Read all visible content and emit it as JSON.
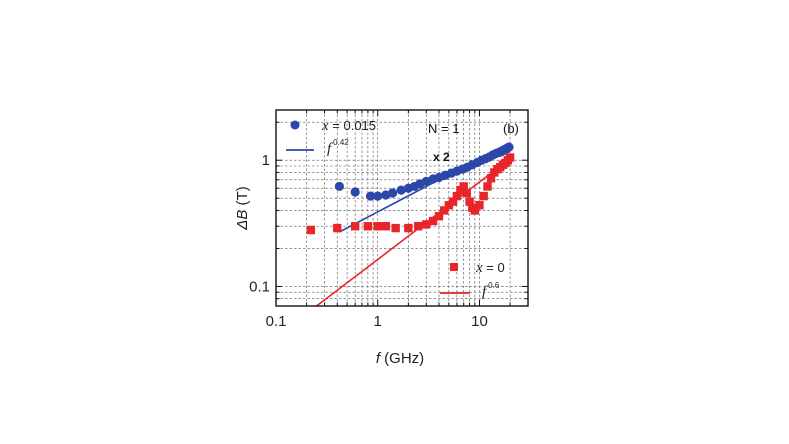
{
  "chart_data": {
    "type": "scatter",
    "xscale": "log",
    "yscale": "log",
    "xlim": [
      0.1,
      30
    ],
    "ylim": [
      0.07,
      2.5
    ],
    "grid": true,
    "xlabel": {
      "italic": "f",
      "rest": " (GHz)"
    },
    "ylabel": {
      "italic": "ΔB",
      "rest": " (T)"
    },
    "xticks": [
      {
        "value": 0.1,
        "label": "0.1"
      },
      {
        "value": 1,
        "label": "1"
      },
      {
        "value": 10,
        "label": "10"
      }
    ],
    "yticks": [
      {
        "value": 0.1,
        "label": "0.1"
      },
      {
        "value": 1,
        "label": "1"
      }
    ],
    "annotations": {
      "n_label": "N = 1",
      "panel_label": "(b)",
      "multiplier": "x 2"
    },
    "series": [
      {
        "name": "x = 0.015",
        "name_var": "x",
        "name_rest": " = 0.015",
        "marker": "circle",
        "color": "#2b47a8",
        "x": [
          0.42,
          0.6,
          0.85,
          1.0,
          1.2,
          1.4,
          1.7,
          2.0,
          2.3,
          2.6,
          3.0,
          3.5,
          4.0,
          4.6,
          5.3,
          6.0,
          6.8,
          7.6,
          8.5,
          9.5,
          10.5,
          11.5,
          12.5,
          13.5,
          14.5,
          15.5,
          16.5,
          17.5,
          18.5,
          19.5
        ],
        "y": [
          0.62,
          0.56,
          0.52,
          0.52,
          0.53,
          0.55,
          0.58,
          0.6,
          0.62,
          0.65,
          0.68,
          0.71,
          0.73,
          0.76,
          0.79,
          0.82,
          0.85,
          0.88,
          0.92,
          0.96,
          1.0,
          1.03,
          1.06,
          1.1,
          1.13,
          1.15,
          1.17,
          1.2,
          1.23,
          1.27
        ]
      },
      {
        "name": "x = 0",
        "name_var": "x",
        "name_rest": " = 0",
        "marker": "square",
        "color": "#e8262a",
        "x": [
          0.22,
          0.4,
          0.6,
          0.8,
          1.0,
          1.2,
          1.5,
          2.0,
          2.5,
          3.0,
          3.5,
          4.0,
          4.5,
          5.0,
          5.5,
          6.0,
          6.5,
          7.0,
          7.5,
          8.0,
          8.5,
          9.0,
          10.0,
          11.0,
          12.0,
          13.0,
          14.0,
          15.0,
          16.0,
          17.0,
          18.0,
          19.0,
          20.0
        ],
        "y": [
          0.28,
          0.29,
          0.3,
          0.3,
          0.3,
          0.3,
          0.29,
          0.29,
          0.3,
          0.31,
          0.33,
          0.36,
          0.4,
          0.44,
          0.47,
          0.52,
          0.58,
          0.62,
          0.55,
          0.47,
          0.42,
          0.4,
          0.44,
          0.52,
          0.62,
          0.72,
          0.8,
          0.85,
          0.88,
          0.92,
          0.95,
          1.0,
          1.05
        ]
      }
    ],
    "fits": [
      {
        "name": "f^0.42",
        "base": "f",
        "exponent": "0.42",
        "color": "#2b47a8",
        "x": [
          0.42,
          19.5
        ],
        "y": [
          0.27,
          1.37
        ]
      },
      {
        "name": "f^0.6",
        "base": "f",
        "exponent": "0.6",
        "color": "#e8262a",
        "x": [
          0.25,
          19.5
        ],
        "y": [
          0.07,
          1.01
        ]
      }
    ]
  }
}
